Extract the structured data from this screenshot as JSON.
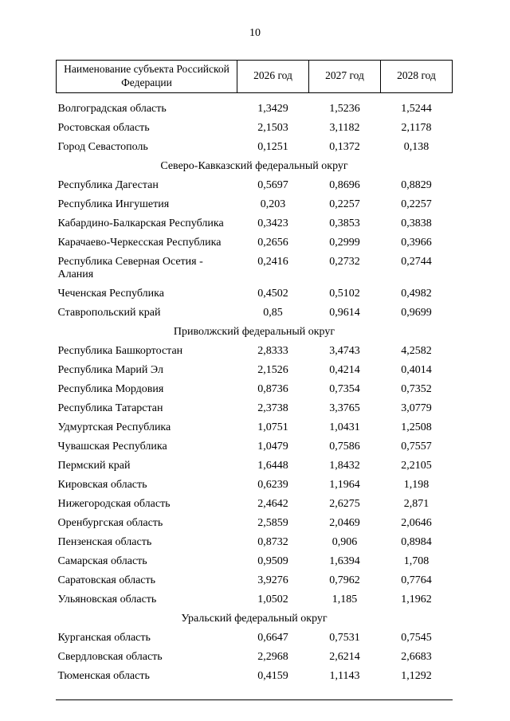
{
  "page": {
    "number": "10"
  },
  "table": {
    "headers": [
      "Наименование субъекта Российской Федерации",
      "2026 год",
      "2027 год",
      "2028 год"
    ],
    "rows": [
      {
        "type": "data",
        "name": "Волгоградская область",
        "v": [
          "1,3429",
          "1,5236",
          "1,5244"
        ]
      },
      {
        "type": "data",
        "name": "Ростовская область",
        "v": [
          "2,1503",
          "3,1182",
          "2,1178"
        ]
      },
      {
        "type": "data",
        "name": "Город Севастополь",
        "v": [
          "0,1251",
          "0,1372",
          "0,138"
        ]
      },
      {
        "type": "section",
        "label": "Северо-Кавказский федеральный округ"
      },
      {
        "type": "data",
        "name": "Республика Дагестан",
        "v": [
          "0,5697",
          "0,8696",
          "0,8829"
        ]
      },
      {
        "type": "data",
        "name": "Республика Ингушетия",
        "v": [
          "0,203",
          "0,2257",
          "0,2257"
        ]
      },
      {
        "type": "data",
        "name": "Кабардино-Балкарская Республика",
        "v": [
          "0,3423",
          "0,3853",
          "0,3838"
        ]
      },
      {
        "type": "data",
        "name": "Карачаево-Черкесская Республика",
        "v": [
          "0,2656",
          "0,2999",
          "0,3966"
        ]
      },
      {
        "type": "data",
        "name": "Республика Северная Осетия - Алания",
        "v": [
          "0,2416",
          "0,2732",
          "0,2744"
        ]
      },
      {
        "type": "data",
        "name": "Чеченская Республика",
        "v": [
          "0,4502",
          "0,5102",
          "0,4982"
        ]
      },
      {
        "type": "data",
        "name": "Ставропольский край",
        "v": [
          "0,85",
          "0,9614",
          "0,9699"
        ]
      },
      {
        "type": "section",
        "label": "Приволжский федеральный округ"
      },
      {
        "type": "data",
        "name": "Республика Башкортостан",
        "v": [
          "2,8333",
          "3,4743",
          "4,2582"
        ]
      },
      {
        "type": "data",
        "name": "Республика Марий Эл",
        "v": [
          "2,1526",
          "0,4214",
          "0,4014"
        ]
      },
      {
        "type": "data",
        "name": "Республика Мордовия",
        "v": [
          "0,8736",
          "0,7354",
          "0,7352"
        ]
      },
      {
        "type": "data",
        "name": "Республика Татарстан",
        "v": [
          "2,3738",
          "3,3765",
          "3,0779"
        ]
      },
      {
        "type": "data",
        "name": "Удмуртская Республика",
        "v": [
          "1,0751",
          "1,0431",
          "1,2508"
        ]
      },
      {
        "type": "data",
        "name": "Чувашская Республика",
        "v": [
          "1,0479",
          "0,7586",
          "0,7557"
        ]
      },
      {
        "type": "data",
        "name": "Пермский край",
        "v": [
          "1,6448",
          "1,8432",
          "2,2105"
        ]
      },
      {
        "type": "data",
        "name": "Кировская область",
        "v": [
          "0,6239",
          "1,1964",
          "1,198"
        ]
      },
      {
        "type": "data",
        "name": "Нижегородская область",
        "v": [
          "2,4642",
          "2,6275",
          "2,871"
        ]
      },
      {
        "type": "data",
        "name": "Оренбургская область",
        "v": [
          "2,5859",
          "2,0469",
          "2,0646"
        ]
      },
      {
        "type": "data",
        "name": "Пензенская область",
        "v": [
          "0,8732",
          "0,906",
          "0,8984"
        ]
      },
      {
        "type": "data",
        "name": "Самарская область",
        "v": [
          "0,9509",
          "1,6394",
          "1,708"
        ]
      },
      {
        "type": "data",
        "name": "Саратовская область",
        "v": [
          "3,9276",
          "0,7962",
          "0,7764"
        ]
      },
      {
        "type": "data",
        "name": "Ульяновская область",
        "v": [
          "1,0502",
          "1,185",
          "1,1962"
        ]
      },
      {
        "type": "section",
        "label": "Уральский федеральный округ"
      },
      {
        "type": "data",
        "name": "Курганская область",
        "v": [
          "0,6647",
          "0,7531",
          "0,7545"
        ]
      },
      {
        "type": "data",
        "name": "Свердловская область",
        "v": [
          "2,2968",
          "2,6214",
          "2,6683"
        ]
      },
      {
        "type": "data",
        "name": "Тюменская область",
        "v": [
          "0,4159",
          "1,1143",
          "1,1292"
        ]
      }
    ]
  }
}
